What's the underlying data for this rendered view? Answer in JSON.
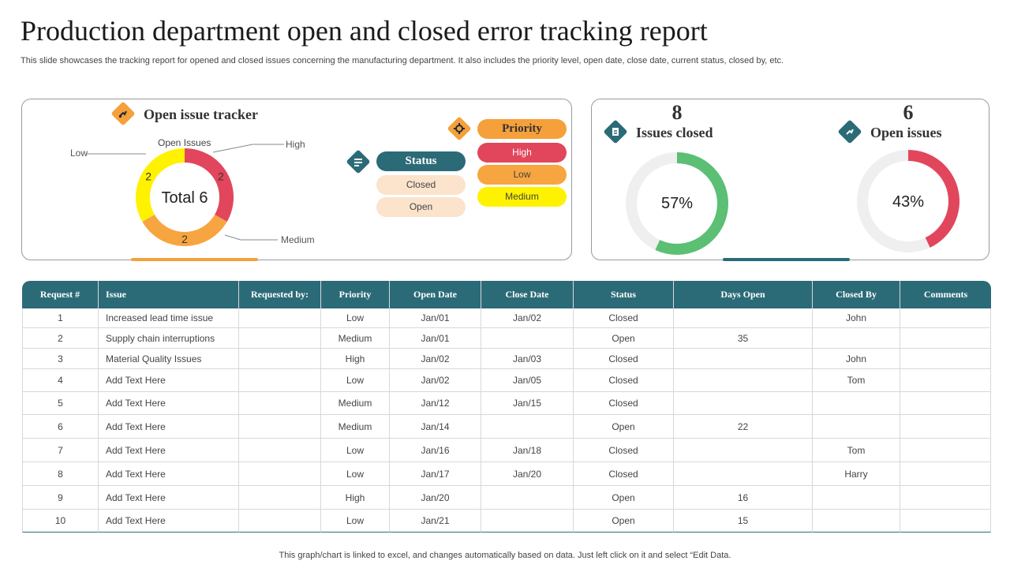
{
  "title": "Production department open and closed error tracking report",
  "subtitle": "This slide showcases the tracking report for opened and closed issues concerning the manufacturing department.  It also includes the priority level, open date, close date, current status, closed by, etc.",
  "open_tracker": {
    "heading": "Open issue tracker",
    "center_label": "Total 6",
    "inner_label": "Open Issues",
    "callouts": {
      "low": "Low",
      "high": "High",
      "medium": "Medium"
    }
  },
  "status_legend": {
    "heading": "Status",
    "items": [
      "Closed",
      "Open"
    ]
  },
  "priority_legend": {
    "heading": "Priority",
    "items": [
      "High",
      "Low",
      "Medium"
    ]
  },
  "closed_kpi": {
    "count": "8",
    "label": "Issues closed",
    "percent_label": "57%"
  },
  "open_kpi": {
    "count": "6",
    "label": "Open issues",
    "percent_label": "43%"
  },
  "colors": {
    "high": "#e2465c",
    "low": "#f7a540",
    "medium": "#fff200",
    "closed_fill": "#fbe3cc",
    "teal": "#2b6b77",
    "green": "#5bbf74",
    "track": "#efefef"
  },
  "table": {
    "headers": [
      "Request #",
      "Issue",
      "Requested  by:",
      "Priority",
      "Open Date",
      "Close Date",
      "Status",
      "Days Open",
      "Closed By",
      "Comments"
    ],
    "rows": [
      [
        "1",
        "Increased lead time issue",
        "",
        "Low",
        "Jan/01",
        "Jan/02",
        "Closed",
        "",
        "John",
        ""
      ],
      [
        "2",
        "Supply chain interruptions",
        "",
        "Medium",
        "Jan/01",
        "",
        "Open",
        "35",
        "",
        ""
      ],
      [
        "3",
        "Material Quality Issues",
        "",
        "High",
        "Jan/02",
        "Jan/03",
        "Closed",
        "",
        "John",
        ""
      ],
      [
        "4",
        "Add Text Here",
        "",
        "Low",
        "Jan/02",
        "Jan/05",
        "Closed",
        "",
        "Tom",
        ""
      ],
      [
        "5",
        "Add Text Here",
        "",
        "Medium",
        "Jan/12",
        "Jan/15",
        "Closed",
        "",
        "",
        ""
      ],
      [
        "6",
        "Add Text Here",
        "",
        "Medium",
        "Jan/14",
        "",
        "Open",
        "22",
        "",
        ""
      ],
      [
        "7",
        "Add Text Here",
        "",
        "Low",
        "Jan/16",
        "Jan/18",
        "Closed",
        "",
        "Tom",
        ""
      ],
      [
        "8",
        "Add Text Here",
        "",
        "Low",
        "Jan/17",
        "Jan/20",
        "Closed",
        "",
        "Harry",
        ""
      ],
      [
        "9",
        "Add Text Here",
        "",
        "High",
        "Jan/20",
        "",
        "Open",
        "16",
        "",
        ""
      ],
      [
        "10",
        "Add Text Here",
        "",
        "Low",
        "Jan/21",
        "",
        "Open",
        "15",
        "",
        ""
      ]
    ]
  },
  "footer": "This graph/chart is linked to excel, and changes automatically based on data. Just left click on it and select “Edit Data.",
  "chart_data": [
    {
      "type": "pie",
      "title": "Open issue tracker",
      "categories": [
        "High",
        "Medium",
        "Low"
      ],
      "values": [
        2,
        2,
        2
      ],
      "colors": [
        "#e2465c",
        "#f7a540",
        "#fff200"
      ]
    },
    {
      "type": "pie",
      "title": "Issues closed",
      "categories": [
        "Issues closed",
        "Open issues"
      ],
      "values": [
        57,
        43
      ]
    },
    {
      "type": "pie",
      "title": "Open issues",
      "categories": [
        "Open issues",
        "Issues closed"
      ],
      "values": [
        43,
        57
      ]
    }
  ]
}
